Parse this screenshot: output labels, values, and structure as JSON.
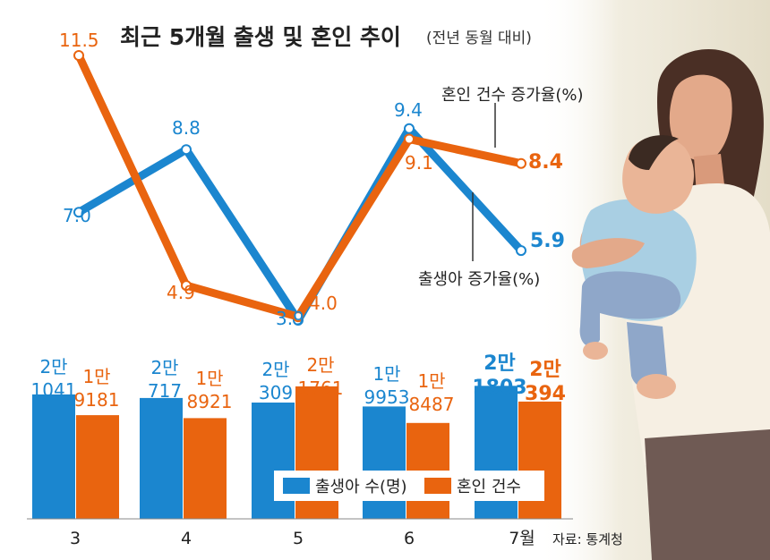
{
  "title": {
    "main": "최근 5개월 출생 및 혼인 추이",
    "sub": "(전년 동월 대비)"
  },
  "colors": {
    "births": "#1b86cf",
    "marriages": "#e9640f",
    "text": "#222222"
  },
  "chart_data": [
    {
      "type": "line",
      "categories": [
        "3",
        "4",
        "5",
        "6",
        "7월"
      ],
      "series": [
        {
          "name": "출생아 증가율(%)",
          "values": [
            7.0,
            8.8,
            3.9,
            9.4,
            5.9
          ],
          "labels": [
            "7.0",
            "8.8",
            "3.9",
            "9.4",
            "5.9"
          ],
          "color": "#1b86cf"
        },
        {
          "name": "혼인 건수 증가율(%)",
          "values": [
            11.5,
            4.9,
            4.0,
            9.1,
            8.4
          ],
          "labels": [
            "11.5",
            "4.9",
            "4.0",
            "9.1",
            "8.4"
          ],
          "color": "#e9640f"
        }
      ]
    },
    {
      "type": "bar",
      "categories": [
        "3",
        "4",
        "5",
        "6",
        "7월"
      ],
      "series": [
        {
          "name": "출생아 수(명)",
          "values": [
            21041,
            20717,
            20309,
            19953,
            21803
          ],
          "labels": [
            [
              "2만",
              "1041"
            ],
            [
              "2만",
              "717"
            ],
            [
              "2만",
              "309"
            ],
            [
              "1만",
              "9953"
            ],
            [
              "2만",
              "1803"
            ]
          ],
          "color": "#1b86cf"
        },
        {
          "name": "혼인 건수",
          "values": [
            19181,
            18921,
            21761,
            18487,
            20394
          ],
          "labels": [
            [
              "1만",
              "9181"
            ],
            [
              "1만",
              "8921"
            ],
            [
              "2만",
              "1761"
            ],
            [
              "1만",
              "8487"
            ],
            [
              "2만",
              "394"
            ]
          ],
          "color": "#e9640f"
        }
      ]
    }
  ],
  "source": "자료: 통계청"
}
